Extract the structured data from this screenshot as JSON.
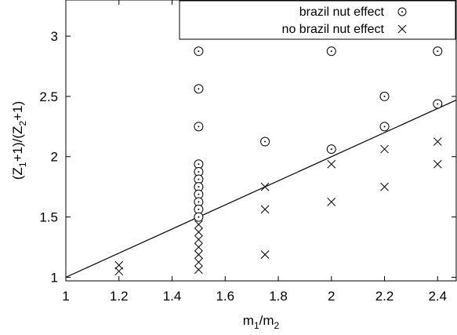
{
  "chart_data": {
    "type": "scatter",
    "title": "",
    "xlabel": {
      "base": "m",
      "sub1": "1",
      "sep": "/m",
      "sub2": "2"
    },
    "ylabel": {
      "p1": "(Z",
      "s1": "1",
      "p2": "+1)/(Z",
      "s2": "2",
      "p3": "+1)"
    },
    "xlim": [
      1,
      2.47
    ],
    "ylim": [
      0.97,
      3.3
    ],
    "xticks": [
      "1",
      "1.2",
      "1.4",
      "1.6",
      "1.8",
      "2",
      "2.2",
      "2.4"
    ],
    "yticks": [
      "1",
      "1.5",
      "2",
      "2.5",
      "3"
    ],
    "grid": false,
    "legend_position": "top-right",
    "series": [
      {
        "name": "brazil nut effect",
        "marker": "circle-dot",
        "points": [
          [
            1.5,
            2.875
          ],
          [
            1.5,
            2.563
          ],
          [
            1.5,
            2.25
          ],
          [
            1.5,
            1.938
          ],
          [
            1.5,
            1.875
          ],
          [
            1.5,
            1.813
          ],
          [
            1.5,
            1.75
          ],
          [
            1.5,
            1.688
          ],
          [
            1.5,
            1.625
          ],
          [
            1.5,
            1.563
          ],
          [
            1.5,
            1.5
          ],
          [
            1.75,
            2.125
          ],
          [
            2.0,
            2.875
          ],
          [
            2.0,
            2.063
          ],
          [
            2.2,
            2.5
          ],
          [
            2.2,
            2.25
          ],
          [
            2.4,
            2.875
          ],
          [
            2.4,
            2.438
          ]
        ]
      },
      {
        "name": "no brazil nut effect",
        "marker": "x",
        "points": [
          [
            1.2,
            1.1
          ],
          [
            1.2,
            1.05
          ],
          [
            1.5,
            1.438
          ],
          [
            1.5,
            1.375
          ],
          [
            1.5,
            1.313
          ],
          [
            1.5,
            1.25
          ],
          [
            1.5,
            1.188
          ],
          [
            1.5,
            1.125
          ],
          [
            1.5,
            1.063
          ],
          [
            1.75,
            1.75
          ],
          [
            1.75,
            1.563
          ],
          [
            1.75,
            1.188
          ],
          [
            2.0,
            1.938
          ],
          [
            2.0,
            1.625
          ],
          [
            2.2,
            2.063
          ],
          [
            2.2,
            1.75
          ],
          [
            2.4,
            2.125
          ],
          [
            2.4,
            1.938
          ]
        ]
      }
    ],
    "reference_line": {
      "from": [
        1.0,
        1.0
      ],
      "to": [
        2.47,
        2.47
      ]
    }
  }
}
